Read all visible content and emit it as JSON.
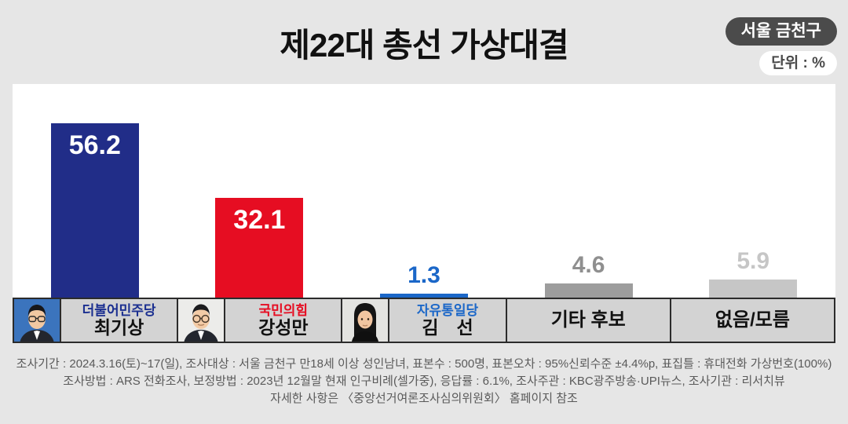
{
  "header": {
    "title": "제22대 총선 가상대결",
    "region_badge": "서울 금천구",
    "unit_badge": "단위 : %"
  },
  "chart_data": {
    "type": "bar",
    "title": "제22대 총선 가상대결",
    "region": "서울 금천구",
    "unit": "%",
    "categories": [
      "더불어민주당 최기상",
      "국민의힘 강성만",
      "자유통일당 김 선",
      "기타 후보",
      "없음/모름"
    ],
    "values": [
      56.2,
      32.1,
      1.3,
      4.6,
      5.9
    ],
    "bar_colors": [
      "#212d88",
      "#e60d22",
      "#1b67c8",
      "#9d9d9d",
      "#c6c6c6"
    ],
    "value_label_colors": [
      "#ffffff",
      "#ffffff",
      "#1b67c8",
      "#8f8f8f",
      "#c6c6c6"
    ],
    "value_label_position": [
      "inside",
      "inside",
      "above",
      "above",
      "above"
    ],
    "ylim": [
      0,
      65
    ],
    "grid": false,
    "legend_position": "bottom"
  },
  "legend": {
    "items": [
      {
        "party": "더불어민주당",
        "party_color": "#1b2f90",
        "name": "최기상",
        "photo": "man-glasses-blue-bg"
      },
      {
        "party": "국민의힘",
        "party_color": "#e60d22",
        "name": "강성만",
        "photo": "man-round-glasses"
      },
      {
        "party": "자유통일당",
        "party_color": "#1b67c8",
        "name": "김　선",
        "photo": "woman-bob-hair"
      },
      {
        "party": "",
        "party_color": "",
        "name": "기타 후보",
        "photo": null
      },
      {
        "party": "",
        "party_color": "",
        "name": "없음/모름",
        "photo": null
      }
    ]
  },
  "footer": {
    "lines": [
      "조사기간 : 2024.3.16(토)~17(일), 조사대상 : 서울 금천구 만18세 이상 성인남녀, 표본수 : 500명, 표본오차 : 95%신뢰수준 ±4.4%p, 표집틀 : 휴대전화 가상번호(100%)",
      "조사방법 : ARS 전화조사, 보정방법 : 2023년 12월말 현재 인구비례(셀가중), 응답률 : 6.1%, 조사주관 : KBC광주방송·UPI뉴스, 조사기관 : 리서치뷰",
      "자세한 사항은 〈중앙선거여론조사심의위원회〉 홈페이지 참조"
    ]
  }
}
